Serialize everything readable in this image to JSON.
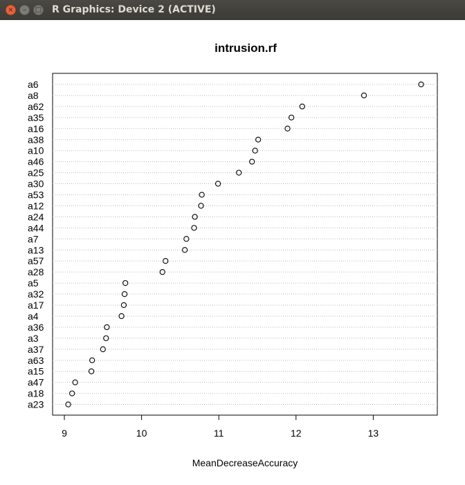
{
  "window": {
    "title": "R Graphics: Device 2 (ACTIVE)",
    "close_glyph": "×",
    "minimize_glyph": "–",
    "maximize_glyph": "□"
  },
  "chart_data": {
    "type": "scatter",
    "subtype": "dotchart",
    "title": "intrusion.rf",
    "xlabel": "MeanDecreaseAccuracy",
    "ylabel": "",
    "xlim": [
      9.0,
      13.8
    ],
    "xticks": [
      9,
      10,
      11,
      12,
      13
    ],
    "grid": "horizontal dotted",
    "legend": "none",
    "point_color": "#000000",
    "categories": [
      "a6",
      "a8",
      "a62",
      "a35",
      "a16",
      "a38",
      "a10",
      "a46",
      "a25",
      "a30",
      "a53",
      "a12",
      "a24",
      "a44",
      "a7",
      "a13",
      "a57",
      "a28",
      "a5",
      "a32",
      "a17",
      "a4",
      "a36",
      "a3",
      "a37",
      "a63",
      "a15",
      "a47",
      "a18",
      "a23"
    ],
    "values": [
      13.62,
      12.88,
      12.08,
      11.94,
      11.89,
      11.51,
      11.47,
      11.43,
      11.26,
      10.99,
      10.78,
      10.77,
      10.69,
      10.68,
      10.58,
      10.56,
      10.31,
      10.27,
      9.79,
      9.78,
      9.77,
      9.74,
      9.55,
      9.54,
      9.5,
      9.36,
      9.35,
      9.14,
      9.1,
      9.05
    ]
  }
}
